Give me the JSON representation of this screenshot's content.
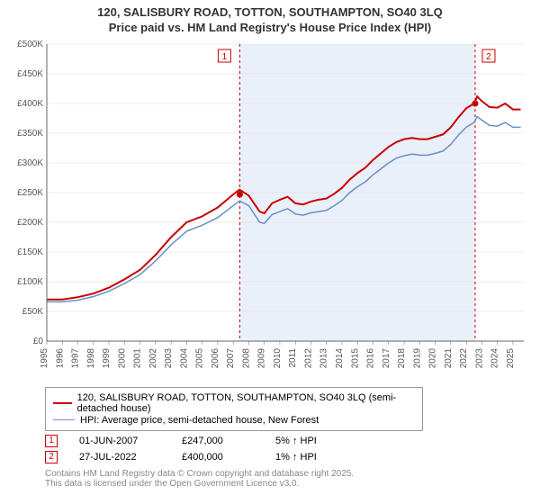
{
  "chart": {
    "title_line1": "120, SALISBURY ROAD, TOTTON, SOUTHAMPTON, SO40 3LQ",
    "title_line2": "Price paid vs. HM Land Registry's House Price Index (HPI)",
    "background_color": "#ffffff",
    "plot_bg": "#ffffff",
    "shade_color": "#eaf0f9",
    "grid_color": "#d9d9d9",
    "axis_color": "#666666",
    "tick_fontsize": 10,
    "title_fontsize": 13,
    "y": {
      "min": 0,
      "max": 500000,
      "step": 50000,
      "labels": [
        "£0",
        "£50K",
        "£100K",
        "£150K",
        "£200K",
        "£250K",
        "£300K",
        "£350K",
        "£400K",
        "£450K",
        "£500K"
      ]
    },
    "x": {
      "min": 1995,
      "max": 2025.7,
      "step": 1,
      "labels": [
        "1995",
        "1996",
        "1997",
        "1998",
        "1999",
        "2000",
        "2001",
        "2002",
        "2003",
        "2004",
        "2005",
        "2006",
        "2007",
        "2008",
        "2009",
        "2010",
        "2011",
        "2012",
        "2013",
        "2014",
        "2015",
        "2016",
        "2017",
        "2018",
        "2019",
        "2020",
        "2021",
        "2022",
        "2023",
        "2024",
        "2025"
      ]
    },
    "series": [
      {
        "name": "120, SALISBURY ROAD, TOTTON, SOUTHAMPTON, SO40 3LQ (semi-detached house)",
        "color": "#c80000",
        "width": 2,
        "points": [
          [
            1995,
            70000
          ],
          [
            1996,
            70000
          ],
          [
            1997,
            74000
          ],
          [
            1998,
            80000
          ],
          [
            1999,
            90000
          ],
          [
            2000,
            104000
          ],
          [
            2001,
            120000
          ],
          [
            2002,
            145000
          ],
          [
            2003,
            175000
          ],
          [
            2004,
            200000
          ],
          [
            2005,
            210000
          ],
          [
            2006,
            225000
          ],
          [
            2007,
            247000
          ],
          [
            2007.4,
            255000
          ],
          [
            2008,
            245000
          ],
          [
            2008.7,
            218000
          ],
          [
            2009,
            215000
          ],
          [
            2009.5,
            232000
          ],
          [
            2010,
            238000
          ],
          [
            2010.5,
            243000
          ],
          [
            2011,
            232000
          ],
          [
            2011.5,
            230000
          ],
          [
            2012,
            235000
          ],
          [
            2012.5,
            238000
          ],
          [
            2013,
            240000
          ],
          [
            2013.5,
            248000
          ],
          [
            2014,
            258000
          ],
          [
            2014.5,
            272000
          ],
          [
            2015,
            283000
          ],
          [
            2015.5,
            292000
          ],
          [
            2016,
            305000
          ],
          [
            2016.5,
            316000
          ],
          [
            2017,
            327000
          ],
          [
            2017.5,
            335000
          ],
          [
            2018,
            340000
          ],
          [
            2018.5,
            342000
          ],
          [
            2019,
            340000
          ],
          [
            2019.5,
            340000
          ],
          [
            2020,
            344000
          ],
          [
            2020.5,
            348000
          ],
          [
            2021,
            360000
          ],
          [
            2021.5,
            377000
          ],
          [
            2022,
            392000
          ],
          [
            2022.5,
            400000
          ],
          [
            2022.7,
            412000
          ],
          [
            2023,
            404000
          ],
          [
            2023.5,
            394000
          ],
          [
            2024,
            393000
          ],
          [
            2024.5,
            400000
          ],
          [
            2025,
            390000
          ],
          [
            2025.5,
            390000
          ]
        ]
      },
      {
        "name": "HPI: Average price, semi-detached house, New Forest",
        "color": "#6a8fc5",
        "width": 1.5,
        "points": [
          [
            1995,
            66000
          ],
          [
            1996,
            66000
          ],
          [
            1997,
            69000
          ],
          [
            1998,
            75000
          ],
          [
            1999,
            84000
          ],
          [
            2000,
            97000
          ],
          [
            2001,
            112000
          ],
          [
            2002,
            135000
          ],
          [
            2003,
            162000
          ],
          [
            2004,
            185000
          ],
          [
            2005,
            195000
          ],
          [
            2006,
            208000
          ],
          [
            2007,
            228000
          ],
          [
            2007.4,
            236000
          ],
          [
            2008,
            228000
          ],
          [
            2008.7,
            200000
          ],
          [
            2009,
            198000
          ],
          [
            2009.5,
            213000
          ],
          [
            2010,
            218000
          ],
          [
            2010.5,
            223000
          ],
          [
            2011,
            214000
          ],
          [
            2011.5,
            212000
          ],
          [
            2012,
            216000
          ],
          [
            2012.5,
            218000
          ],
          [
            2013,
            220000
          ],
          [
            2013.5,
            228000
          ],
          [
            2014,
            237000
          ],
          [
            2014.5,
            250000
          ],
          [
            2015,
            260000
          ],
          [
            2015.5,
            268000
          ],
          [
            2016,
            280000
          ],
          [
            2016.5,
            290000
          ],
          [
            2017,
            300000
          ],
          [
            2017.5,
            308000
          ],
          [
            2018,
            312000
          ],
          [
            2018.5,
            315000
          ],
          [
            2019,
            313000
          ],
          [
            2019.5,
            313000
          ],
          [
            2020,
            316000
          ],
          [
            2020.5,
            320000
          ],
          [
            2021,
            331000
          ],
          [
            2021.5,
            347000
          ],
          [
            2022,
            360000
          ],
          [
            2022.5,
            368000
          ],
          [
            2022.7,
            378000
          ],
          [
            2023,
            372000
          ],
          [
            2023.5,
            363000
          ],
          [
            2024,
            362000
          ],
          [
            2024.5,
            368000
          ],
          [
            2025,
            360000
          ],
          [
            2025.5,
            360000
          ]
        ]
      }
    ],
    "shaded_xrange": [
      2007.42,
      2022.57
    ],
    "markers": [
      {
        "num": "1",
        "x": 2007.42,
        "y": 247000
      },
      {
        "num": "2",
        "x": 2022.57,
        "y": 400000
      }
    ],
    "marker_color": "#c80000"
  },
  "legend": {
    "items": [
      {
        "color": "#c80000",
        "width": 2,
        "label": "120, SALISBURY ROAD, TOTTON, SOUTHAMPTON, SO40 3LQ (semi-detached house)"
      },
      {
        "color": "#6a8fc5",
        "width": 1.5,
        "label": "HPI: Average price, semi-detached house, New Forest"
      }
    ]
  },
  "datapoints": [
    {
      "num": "1",
      "date": "01-JUN-2007",
      "price": "£247,000",
      "pct": "5% ↑ HPI"
    },
    {
      "num": "2",
      "date": "27-JUL-2022",
      "price": "£400,000",
      "pct": "1% ↑ HPI"
    }
  ],
  "footnote_line1": "Contains HM Land Registry data © Crown copyright and database right 2025.",
  "footnote_line2": "This data is licensed under the Open Government Licence v3.0."
}
